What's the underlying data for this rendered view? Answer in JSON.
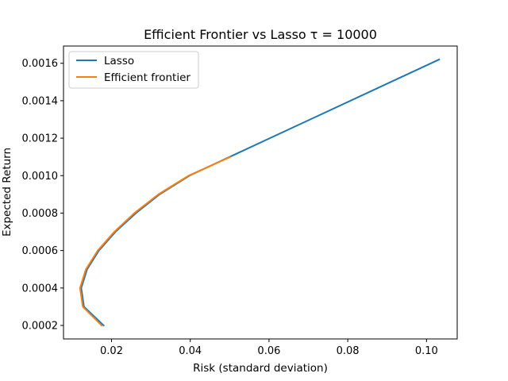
{
  "chart_data": {
    "type": "line",
    "title": "Efficient Frontier vs Lasso τ = 10000",
    "xlabel": "Risk (standard deviation)",
    "ylabel": "Expected Return",
    "xlim": [
      0.0078,
      0.1078
    ],
    "ylim": [
      0.000128,
      0.001692
    ],
    "x_ticks": [
      0.02,
      0.04,
      0.06,
      0.08,
      0.1
    ],
    "x_tick_labels": [
      "0.02",
      "0.04",
      "0.06",
      "0.08",
      "0.10"
    ],
    "y_ticks": [
      0.0002,
      0.0004,
      0.0006,
      0.0008,
      0.001,
      0.0012,
      0.0014,
      0.0016
    ],
    "y_tick_labels": [
      "0.0002",
      "0.0004",
      "0.0006",
      "0.0008",
      "0.0010",
      "0.0012",
      "0.0014",
      "0.0016"
    ],
    "grid": false,
    "legend_position": "top-left",
    "series": [
      {
        "name": "Lasso",
        "color": "#1f77b4",
        "points": [
          [
            0.018,
            0.0002
          ],
          [
            0.013,
            0.0003
          ],
          [
            0.0123,
            0.0004
          ],
          [
            0.0138,
            0.0005
          ],
          [
            0.0168,
            0.0006
          ],
          [
            0.021,
            0.0007
          ],
          [
            0.0262,
            0.0008
          ],
          [
            0.0322,
            0.0009
          ],
          [
            0.0398,
            0.001
          ],
          [
            0.05,
            0.0011
          ],
          [
            0.1032,
            0.00162
          ]
        ]
      },
      {
        "name": "Efficient frontier",
        "color": "#ff7f0e",
        "points": [
          [
            0.0175,
            0.0002
          ],
          [
            0.0127,
            0.0003
          ],
          [
            0.012,
            0.0004
          ],
          [
            0.0135,
            0.0005
          ],
          [
            0.0165,
            0.0006
          ],
          [
            0.0207,
            0.0007
          ],
          [
            0.0258,
            0.0008
          ],
          [
            0.0319,
            0.0009
          ],
          [
            0.0396,
            0.001
          ],
          [
            0.0502,
            0.0011
          ]
        ]
      }
    ]
  }
}
